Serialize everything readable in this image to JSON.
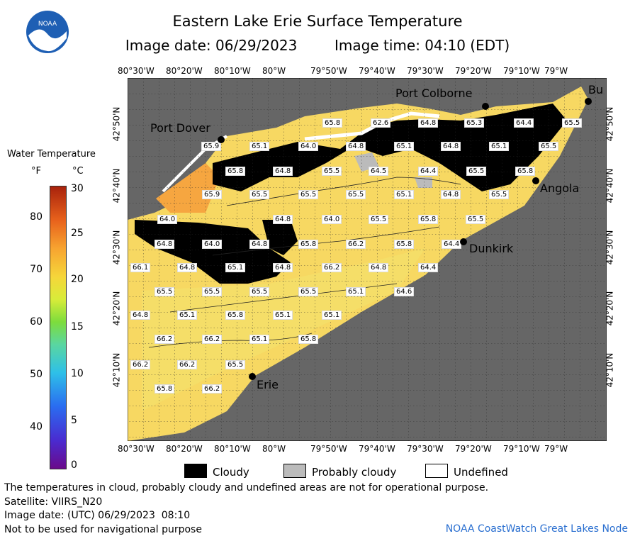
{
  "title": "Eastern Lake Erie Surface Temperature",
  "image_date_label": "Image date: 06/29/2023",
  "image_time_label": "Image time: 04:10 (EDT)",
  "logo_text": "NOAA",
  "legend": {
    "title": "Water Temperature",
    "unit_f": "°F",
    "unit_c": "°C",
    "ticks_f": [
      "80",
      "70",
      "60",
      "50",
      "40"
    ],
    "ticks_c": [
      "30",
      "25",
      "20",
      "15",
      "10",
      "5",
      "0"
    ],
    "colors": [
      "#6a0a8a",
      "#2a6cf0",
      "#2ec0e8",
      "#7ddc3c",
      "#f6d63a",
      "#f7a430",
      "#a8220c"
    ]
  },
  "lon_labels": [
    "80°30'W",
    "80°20'W",
    "80°10'W",
    "80°W",
    "79°50'W",
    "79°40'W",
    "79°30'W",
    "79°20'W",
    "79°10'W",
    "79°W"
  ],
  "lat_labels": [
    "42°50'N",
    "42°40'N",
    "42°30'N",
    "42°20'N",
    "42°10'N"
  ],
  "cities": [
    "Port Colborne",
    "Port Dover",
    "Angola",
    "Dunkirk",
    "Erie",
    "Bu"
  ],
  "temps": [
    "65.8",
    "62.6",
    "64.8",
    "65.3",
    "64.4",
    "65.5",
    "65.9",
    "65.1",
    "64.0",
    "64.8",
    "65.1",
    "64.8",
    "65.1",
    "65.5",
    "65.8",
    "64.8",
    "65.5",
    "64.5",
    "64.4",
    "65.5",
    "65.8",
    "65.9",
    "65.5",
    "65.5",
    "65.5",
    "65.1",
    "64.8",
    "65.5",
    "64.0",
    "64.8",
    "64.0",
    "65.5",
    "65.8",
    "65.5",
    "64.8",
    "64.0",
    "64.8",
    "65.8",
    "66.2",
    "65.8",
    "64.4",
    "66.1",
    "64.8",
    "65.1",
    "64.8",
    "66.2",
    "64.8",
    "64.4",
    "65.5",
    "65.5",
    "65.5",
    "65.5",
    "65.1",
    "64.6",
    "64.8",
    "65.1",
    "65.8",
    "65.1",
    "65.1",
    "66.2",
    "66.2",
    "65.1",
    "65.8",
    "66.2",
    "66.2",
    "65.5",
    "65.8",
    "66.2"
  ],
  "legend_items": {
    "cloudy": "Cloudy",
    "probably_cloudy": "Probably cloudy",
    "undefined": "Undefined"
  },
  "footer": {
    "line1": "The temperatures in cloud, probably cloudy and undefined areas are not for operational purpose.",
    "line2": "Satellite: VIIRS_N20",
    "line3": "Image date: (UTC) 06/29/2023  08:10",
    "line4": "Not to be used for navigational purpose",
    "credit": "NOAA CoastWatch Great Lakes Node"
  }
}
